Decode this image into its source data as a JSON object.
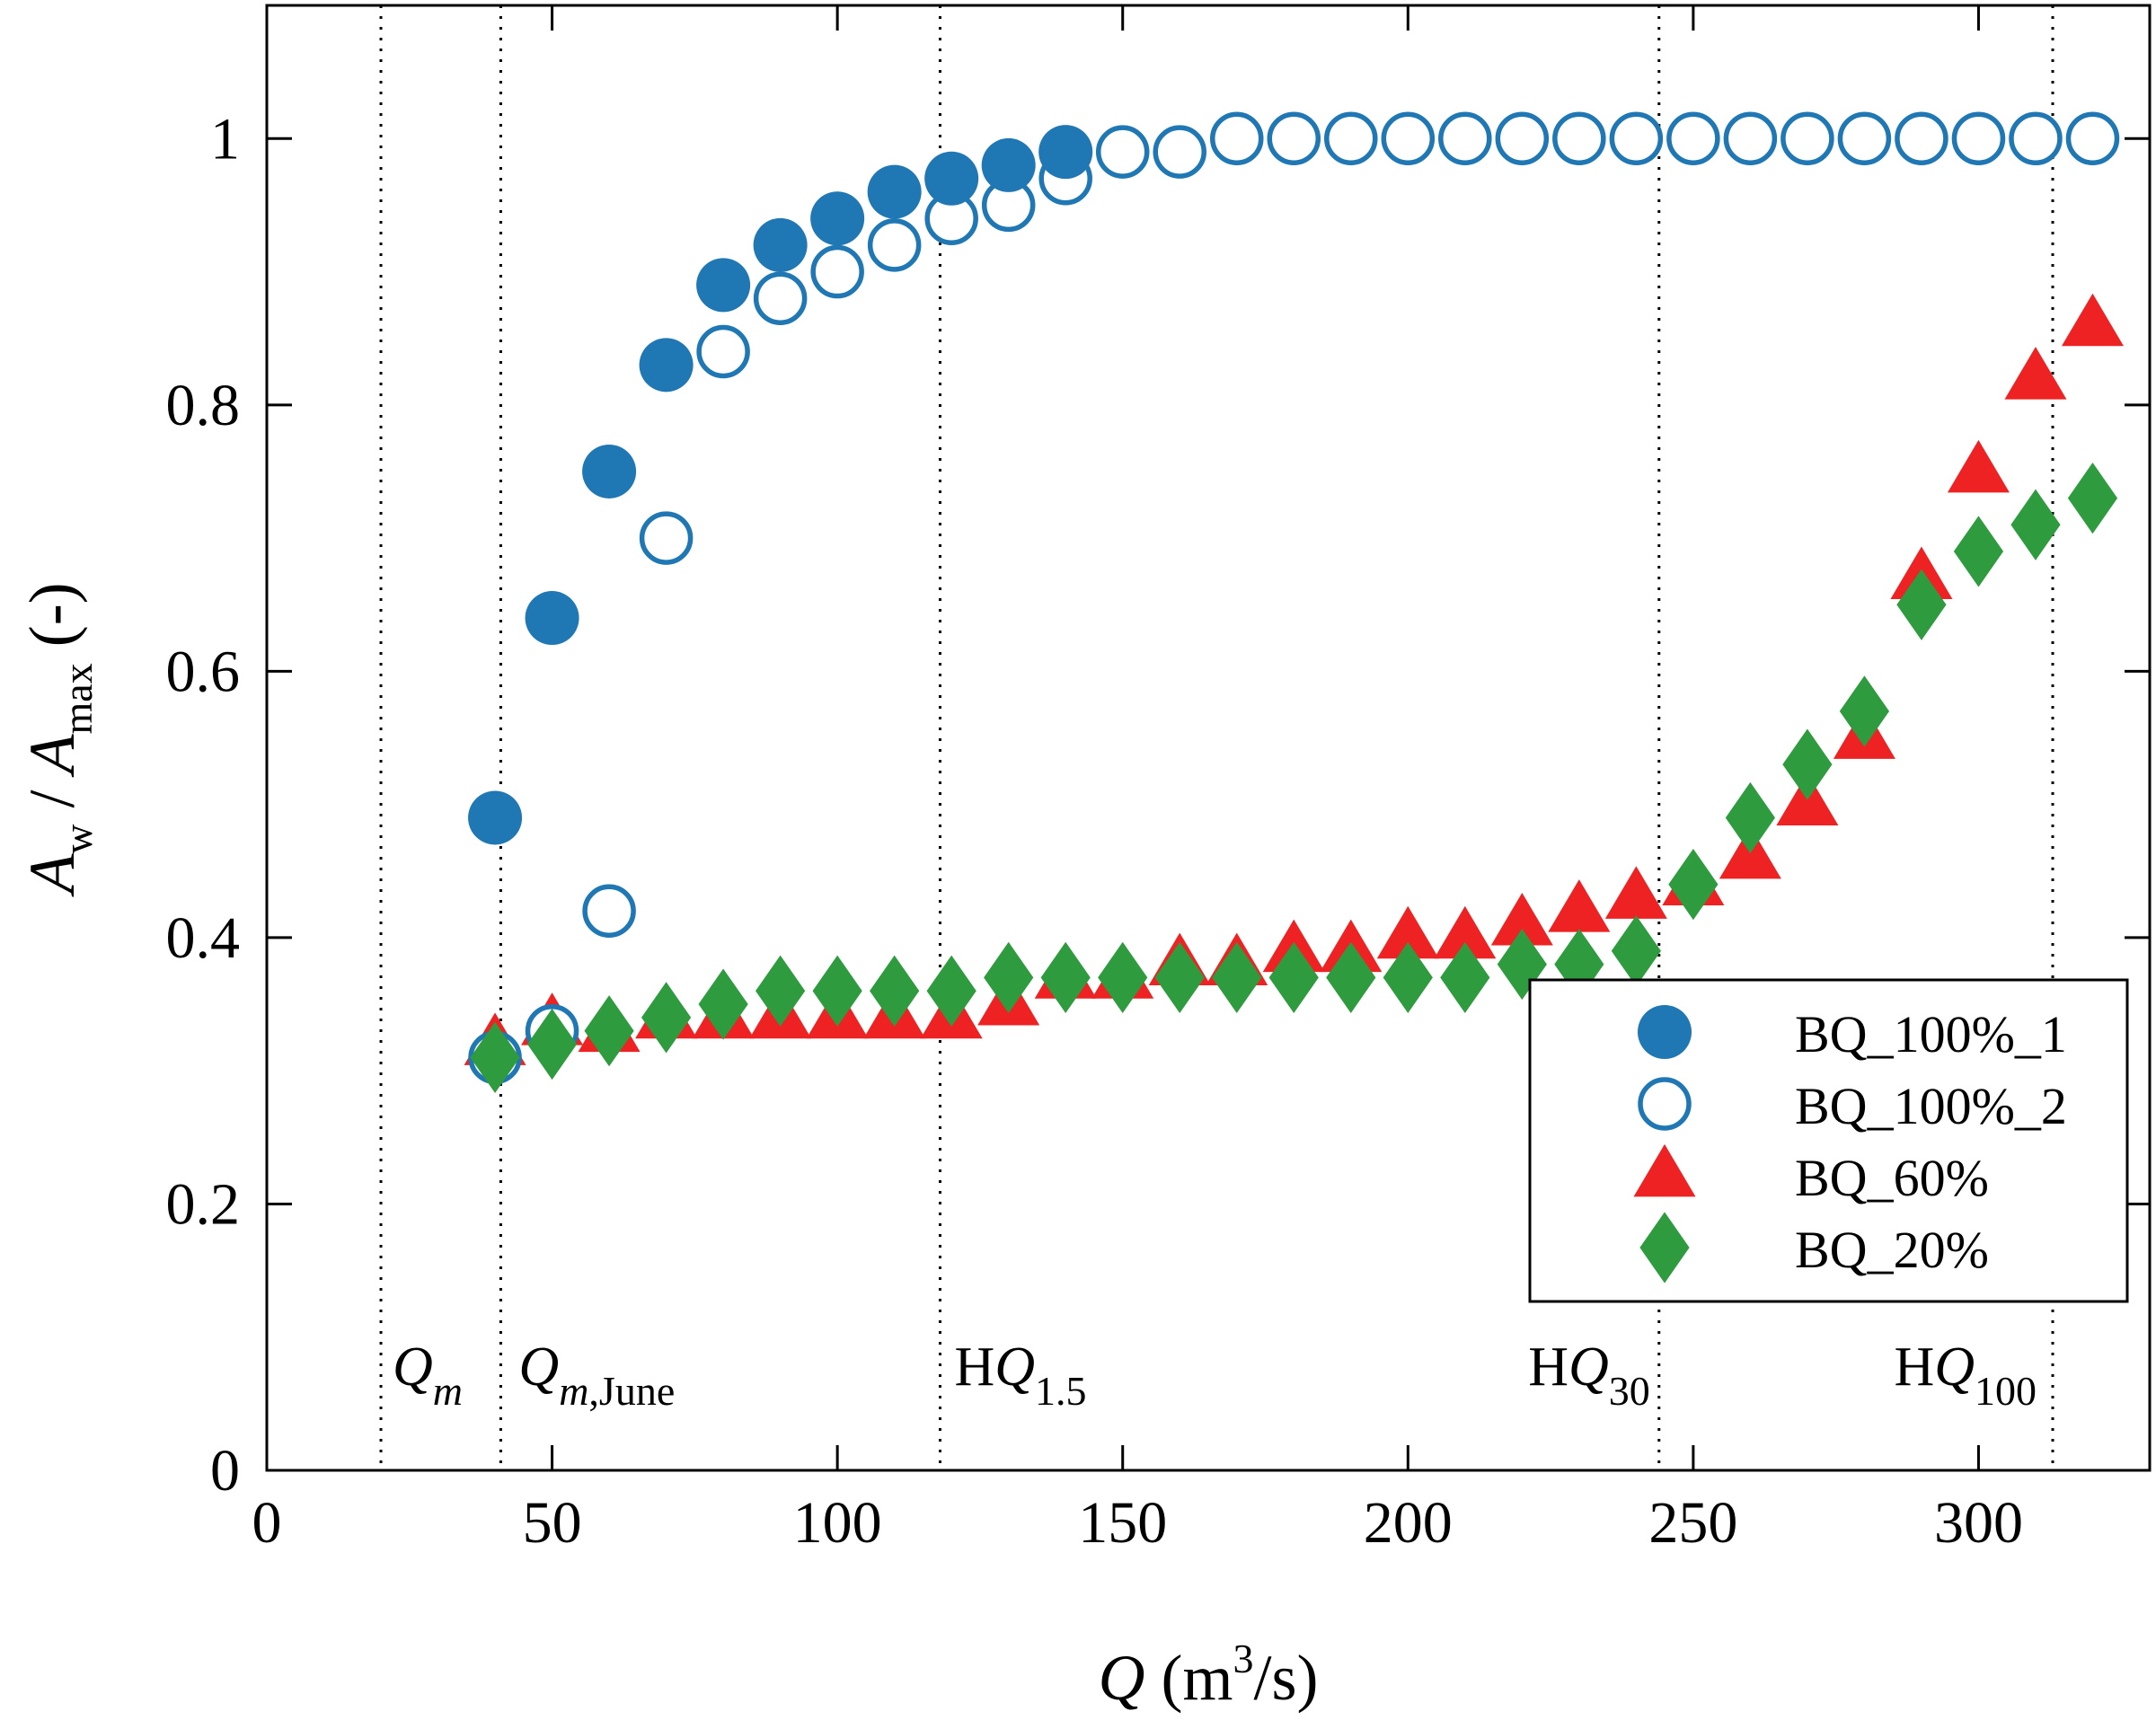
{
  "chart_data": {
    "type": "scatter",
    "xlabel": "Q (m3/s)",
    "ylabel": "Aw / Amax (-)",
    "xlim": [
      0,
      330
    ],
    "ylim": [
      0,
      1.1
    ],
    "x_ticks": [
      0,
      50,
      100,
      150,
      200,
      250,
      300
    ],
    "x_tick_labels": [
      "0",
      "50",
      "100",
      "150",
      "200",
      "250",
      "300"
    ],
    "y_ticks": [
      0,
      0.2,
      0.4,
      0.6,
      0.8,
      1
    ],
    "y_tick_labels": [
      "0",
      "0.2",
      "0.4",
      "0.6",
      "0.8",
      "1"
    ],
    "grid": false,
    "legend_position": "bottom-right",
    "series": [
      {
        "name": "BQ_100%_1",
        "marker": "filled-circle",
        "color": "#1f77b4",
        "x": [
          40,
          50,
          60,
          70,
          80,
          90,
          100,
          110,
          120,
          130,
          140
        ],
        "y": [
          0.49,
          0.64,
          0.75,
          0.83,
          0.89,
          0.92,
          0.94,
          0.96,
          0.97,
          0.98,
          0.99
        ]
      },
      {
        "name": "BQ_100%_2",
        "marker": "open-circle",
        "color": "#1f77b4",
        "x": [
          40,
          50,
          60,
          70,
          80,
          90,
          100,
          110,
          120,
          130,
          140,
          150,
          160,
          170,
          180,
          190,
          200,
          210,
          220,
          230,
          240,
          250,
          260,
          270,
          280,
          290,
          300,
          310,
          320
        ],
        "y": [
          0.31,
          0.33,
          0.42,
          0.7,
          0.84,
          0.88,
          0.9,
          0.92,
          0.94,
          0.95,
          0.97,
          0.99,
          0.99,
          1.0,
          1.0,
          1.0,
          1.0,
          1.0,
          1.0,
          1.0,
          1.0,
          1.0,
          1.0,
          1.0,
          1.0,
          1.0,
          1.0,
          1.0,
          1.0
        ]
      },
      {
        "name": "BQ_60%",
        "marker": "triangle",
        "color": "#ee2222",
        "x": [
          40,
          50,
          60,
          70,
          80,
          90,
          100,
          110,
          120,
          130,
          140,
          150,
          160,
          170,
          180,
          190,
          200,
          210,
          220,
          230,
          240,
          250,
          260,
          270,
          280,
          290,
          300,
          310,
          320
        ],
        "y": [
          0.32,
          0.335,
          0.33,
          0.34,
          0.34,
          0.34,
          0.34,
          0.34,
          0.34,
          0.35,
          0.37,
          0.37,
          0.38,
          0.38,
          0.39,
          0.39,
          0.4,
          0.4,
          0.41,
          0.42,
          0.43,
          0.44,
          0.46,
          0.5,
          0.55,
          0.67,
          0.75,
          0.82,
          0.86
        ]
      },
      {
        "name": "BQ_20%",
        "marker": "diamond",
        "color": "#2e9b3e",
        "x": [
          40,
          50,
          60,
          70,
          80,
          90,
          100,
          110,
          120,
          130,
          140,
          150,
          160,
          170,
          180,
          190,
          200,
          210,
          220,
          230,
          240,
          250,
          260,
          270,
          280,
          290,
          300,
          310,
          320
        ],
        "y": [
          0.31,
          0.32,
          0.33,
          0.34,
          0.35,
          0.36,
          0.36,
          0.36,
          0.36,
          0.37,
          0.37,
          0.37,
          0.37,
          0.37,
          0.37,
          0.37,
          0.37,
          0.37,
          0.38,
          0.38,
          0.39,
          0.44,
          0.49,
          0.53,
          0.57,
          0.65,
          0.69,
          0.71,
          0.73
        ]
      }
    ],
    "reference_lines": [
      {
        "x": 20,
        "label": "Qm",
        "label_main": "Q",
        "label_sub": "m",
        "main_italic": true,
        "sub_italic": true
      },
      {
        "x": 41,
        "label": "Qm,June",
        "label_main": "Q",
        "label_sub": "m",
        "label_sub2": ",June",
        "main_italic": true,
        "sub_italic": true
      },
      {
        "x": 118,
        "label": "HQ1.5",
        "label_prefix": "H",
        "label_main": "Q",
        "label_sub": "1.5",
        "main_italic": true,
        "sub_italic": false
      },
      {
        "x": 244,
        "label": "HQ30",
        "label_prefix": "H",
        "label_main": "Q",
        "label_sub": "30",
        "main_italic": true,
        "sub_italic": false
      },
      {
        "x": 313,
        "label": "HQ100",
        "label_prefix": "H",
        "label_main": "Q",
        "label_sub": "100",
        "main_italic": true,
        "sub_italic": false
      }
    ],
    "axis_title_parts": {
      "x_main": "Q",
      "x_unit_open": " (m",
      "x_unit_sup": "3",
      "x_unit_close": "/s)",
      "y_a1": "A",
      "y_sub1": "w",
      "y_slash": " / ",
      "y_a2": "A",
      "y_sub2": "max",
      "y_unit": " (-)"
    }
  }
}
